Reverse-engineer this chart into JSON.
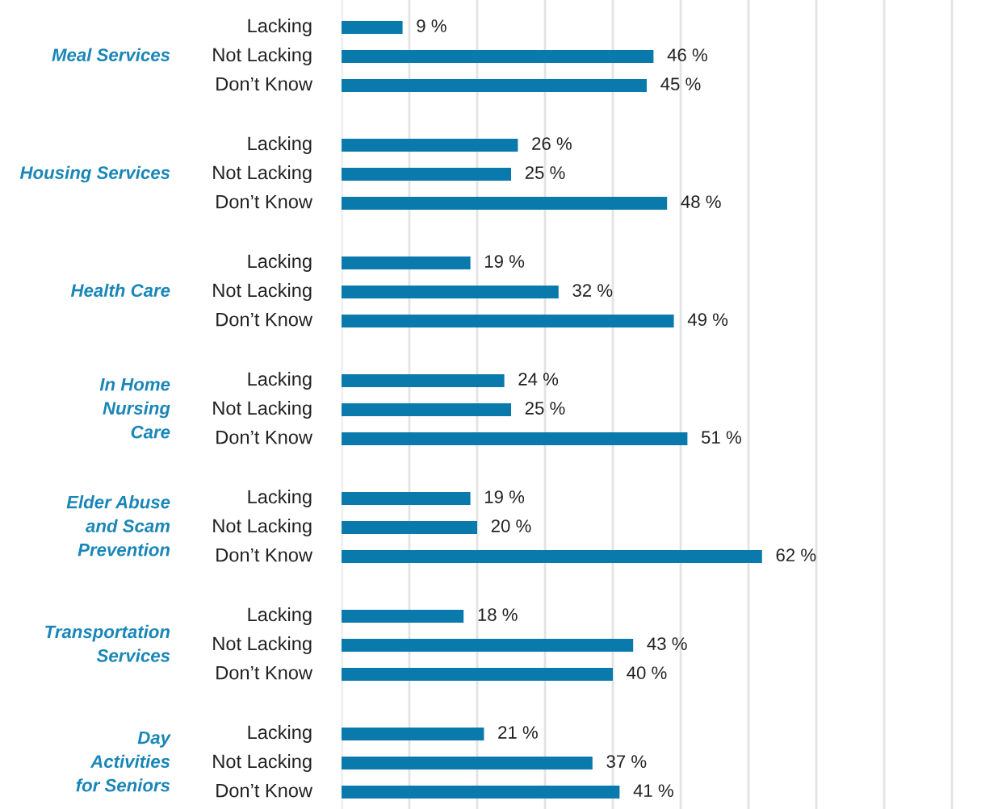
{
  "chart_data": {
    "type": "bar",
    "orientation": "horizontal",
    "categories": [
      "Meal Services",
      "Housing Services",
      "Health Care",
      "In Home\nNursing\nCare",
      "Elder Abuse\nand Scam\nPrevention",
      "Transportation\nServices",
      "Day\nActivities\nfor Seniors"
    ],
    "series": [
      {
        "name": "Lacking",
        "color": "#0a7aad",
        "values": [
          9,
          26,
          19,
          24,
          19,
          18,
          21
        ],
        "value_labels": [
          "9 %",
          "26 %",
          "19 %",
          "24 %",
          "19 %",
          "18 %",
          "21 %"
        ]
      },
      {
        "name": "Not Lacking",
        "color": "#0a7aad",
        "values": [
          46,
          25,
          32,
          25,
          20,
          43,
          37
        ],
        "value_labels": [
          "46 %",
          "25 %",
          "32 %",
          "25 %",
          "20 %",
          "43 %",
          "37 %"
        ]
      },
      {
        "name": "Don’t Know",
        "color": "#0a7aad",
        "values": [
          45,
          48,
          49,
          51,
          62,
          40,
          41
        ],
        "value_labels": [
          "45 %",
          "48 %",
          "49 %",
          "51 %",
          "62 %",
          "40 %",
          "41 %"
        ]
      }
    ],
    "xlim": [
      0,
      90
    ],
    "xticks": [
      {
        "value": 0,
        "label": null
      },
      {
        "value": 10,
        "label": null
      },
      {
        "value": 20,
        "label": null
      },
      {
        "value": 30,
        "label": null
      },
      {
        "value": 40,
        "label": null
      },
      {
        "value": 50,
        "label": null
      },
      {
        "value": 60,
        "label": null
      },
      {
        "value": 70,
        "label": null
      },
      {
        "value": 80,
        "label": null
      },
      {
        "value": 90,
        "label": null
      }
    ],
    "grid": "x",
    "legend": false
  }
}
